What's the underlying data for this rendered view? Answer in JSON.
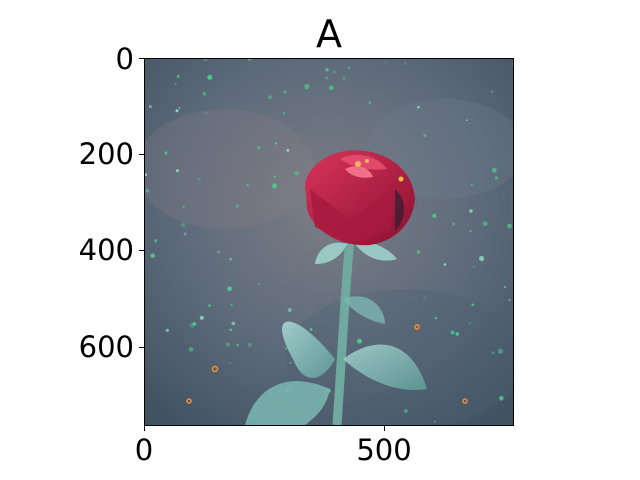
{
  "figure": {
    "title": "A"
  },
  "axes": {
    "yticks": [
      {
        "value": 0,
        "label": "0"
      },
      {
        "value": 200,
        "label": "200"
      },
      {
        "value": 400,
        "label": "400"
      },
      {
        "value": 600,
        "label": "600"
      }
    ],
    "xticks": [
      {
        "value": 0,
        "label": "0"
      },
      {
        "value": 500,
        "label": "500"
      }
    ],
    "xlim": [
      0,
      768
    ],
    "ylim": [
      768,
      0
    ]
  },
  "image": {
    "subject": "rose-photo",
    "colors": {
      "background": "#5d6a7a",
      "petal": "#c21f4a",
      "stem": "#6fa9a0",
      "leaf": "#8fc3c0",
      "sparkle": "#4ec98b"
    }
  }
}
